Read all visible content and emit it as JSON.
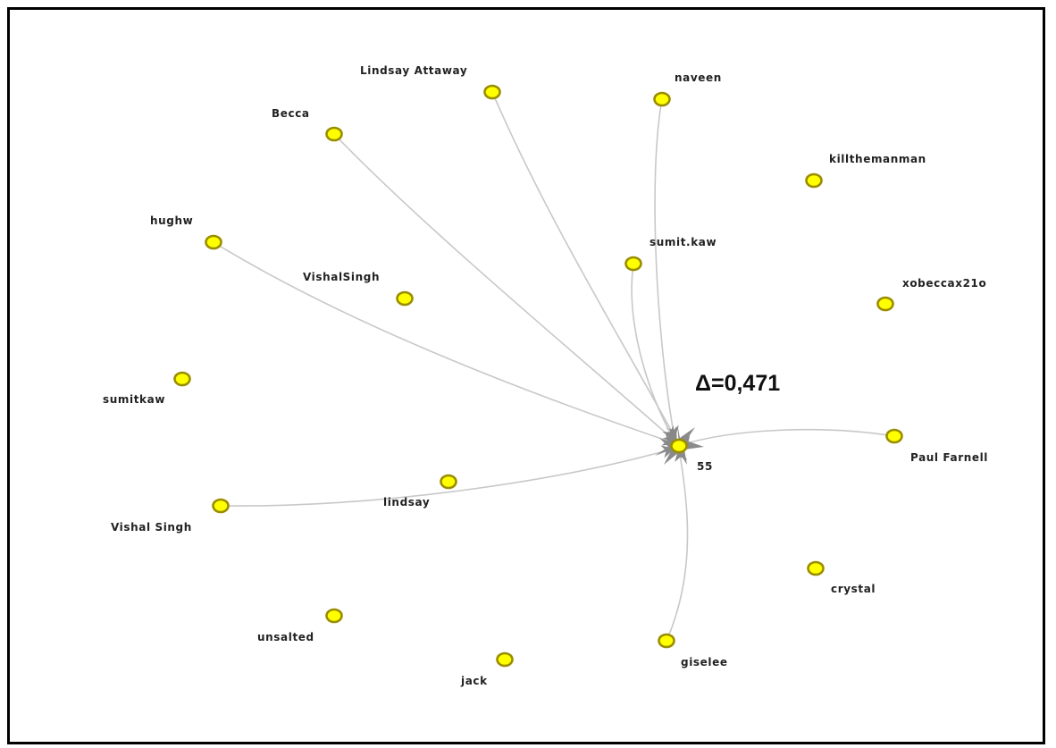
{
  "annotation": "Δ=0,471",
  "hub": {
    "id": "hub",
    "label": "55"
  },
  "nodes": [
    {
      "id": "lindsay_attaway",
      "label": "Lindsay Attaway"
    },
    {
      "id": "naveen",
      "label": "naveen"
    },
    {
      "id": "becca",
      "label": "Becca"
    },
    {
      "id": "killthemanman",
      "label": "killthemanman"
    },
    {
      "id": "hughw",
      "label": "hughw"
    },
    {
      "id": "sumit_kaw",
      "label": "sumit.kaw"
    },
    {
      "id": "vishalsingh",
      "label": "VishalSingh"
    },
    {
      "id": "xobeccax21o",
      "label": "xobeccax21o"
    },
    {
      "id": "sumitkaw",
      "label": "sumitkaw"
    },
    {
      "id": "paul_farnell",
      "label": "Paul Farnell"
    },
    {
      "id": "lindsay",
      "label": "lindsay"
    },
    {
      "id": "vishal_singh",
      "label": "Vishal Singh"
    },
    {
      "id": "crystal",
      "label": "crystal"
    },
    {
      "id": "unsalted",
      "label": "unsalted"
    },
    {
      "id": "giselee",
      "label": "giselee"
    },
    {
      "id": "jack",
      "label": "jack"
    }
  ],
  "edges": [
    {
      "source": "lindsay_attaway",
      "target": "hub"
    },
    {
      "source": "naveen",
      "target": "hub"
    },
    {
      "source": "becca",
      "target": "hub"
    },
    {
      "source": "hughw",
      "target": "hub"
    },
    {
      "source": "sumit_kaw",
      "target": "hub"
    },
    {
      "source": "vishal_singh",
      "target": "hub"
    },
    {
      "source": "paul_farnell",
      "target": "hub"
    },
    {
      "source": "giselee",
      "target": "hub"
    }
  ],
  "colors": {
    "node_fill": "#ffff00",
    "node_stroke": "#9a8d00",
    "edge": "#c8c8c8",
    "arrow": "#888888"
  }
}
